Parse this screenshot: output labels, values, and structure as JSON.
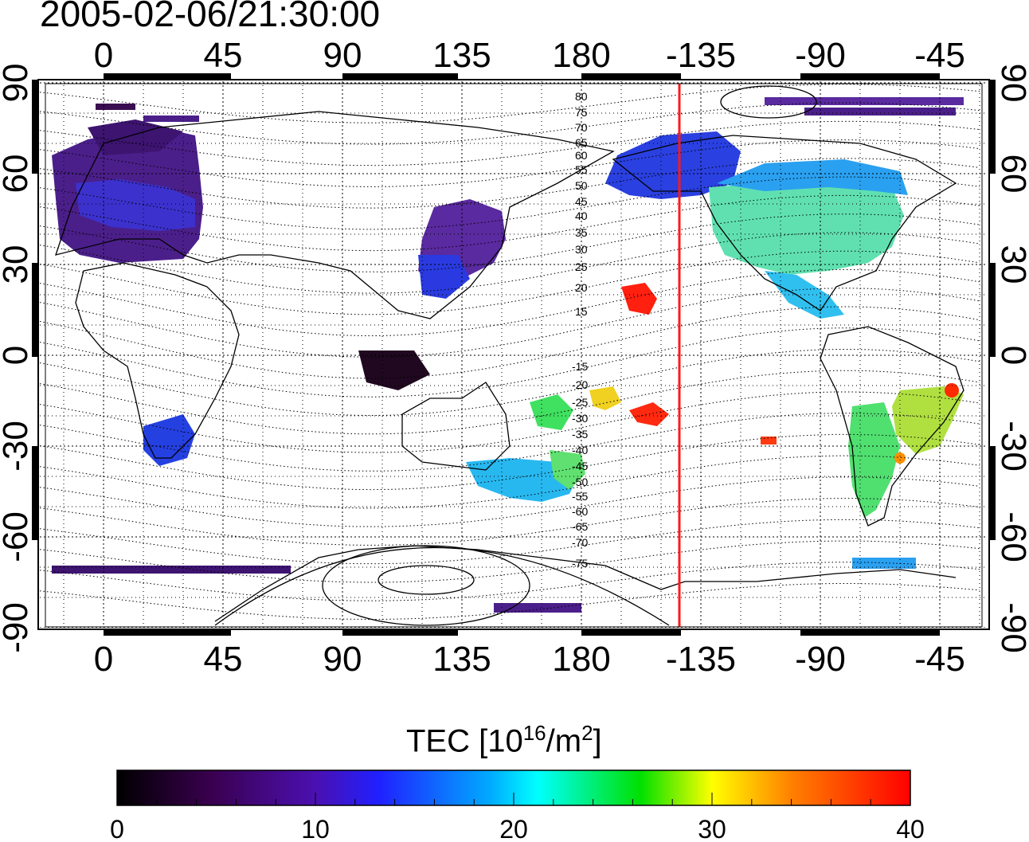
{
  "title": "2005-02-06/21:30:00",
  "colors": {
    "terminator": "#ff1a1a",
    "frame": "#000000",
    "grid": "#000000"
  },
  "map": {
    "x_ticks": [
      "0",
      "45",
      "90",
      "135",
      "180",
      "-135",
      "-90",
      "-45"
    ],
    "y_ticks": [
      "90",
      "60",
      "30",
      "0",
      "-30",
      "-60",
      "-90"
    ],
    "contour_labels_north": [
      "80",
      "75",
      "70",
      "65",
      "60",
      "55",
      "50",
      "45",
      "40",
      "35",
      "30",
      "25",
      "20",
      "15"
    ],
    "contour_labels_south": [
      "15",
      "20",
      "25",
      "30",
      "35",
      "40",
      "45",
      "50",
      "55",
      "60",
      "65",
      "70",
      "75"
    ]
  },
  "colorbar": {
    "label_prefix": "TEC  [10",
    "label_exp1": "16",
    "label_mid": "/m",
    "label_exp2": "2",
    "label_suffix": "]",
    "ticks": [
      "0",
      "10",
      "20",
      "30",
      "40"
    ],
    "range": [
      0,
      40
    ]
  }
}
